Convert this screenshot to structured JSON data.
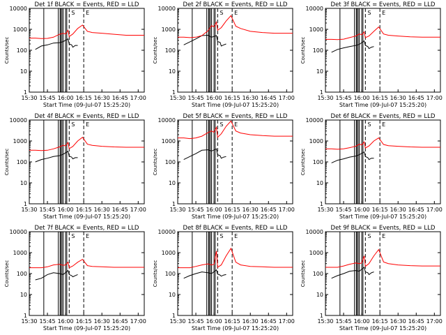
{
  "figure": {
    "xtick_labels": [
      "15:30",
      "15:45",
      "16:00",
      "16:15",
      "16:30",
      "16:45",
      "17:00"
    ],
    "xlabel": "Start Time (09-Jul-07 15:25:20)",
    "ylabel": "Counts/sec",
    "ytick_labels": [
      "1",
      "10",
      "100",
      "1000",
      "10000"
    ],
    "colors": {
      "events": "#000000",
      "lld": "#ff0000",
      "axes": "#000000",
      "background": "#ffffff"
    }
  },
  "chart_data": [
    {
      "type": "line",
      "title": "Det 1f BLACK = Events, RED = LLD",
      "x_unit": "minutes after 15:30",
      "xlim": [
        0,
        95
      ],
      "ylim": [
        1,
        10000
      ],
      "yscale": "log",
      "markers": [
        {
          "x": 33,
          "label": "S"
        },
        {
          "x": 45,
          "label": "E"
        }
      ],
      "series": [
        {
          "name": "Events",
          "color": "#000000",
          "x": [
            0,
            5,
            10,
            15,
            20,
            25,
            28,
            32,
            33,
            35,
            36,
            38,
            40
          ],
          "values": [
            null,
            110,
            160,
            180,
            220,
            230,
            260,
            350,
            200,
            180,
            140,
            170,
            170
          ]
        },
        {
          "name": "LLD",
          "color": "#ff0000",
          "x": [
            0,
            5,
            10,
            15,
            20,
            25,
            28,
            30,
            32,
            33,
            36,
            40,
            44,
            48,
            52,
            60,
            70,
            80,
            95
          ],
          "values": [
            380,
            380,
            360,
            370,
            420,
            580,
            650,
            600,
            900,
            450,
            600,
            1100,
            1600,
            800,
            700,
            650,
            580,
            520,
            520
          ]
        }
      ]
    },
    {
      "type": "line",
      "title": "Det 2f BLACK = Events, RED = LLD",
      "x_unit": "minutes after 15:30",
      "xlim": [
        0,
        95
      ],
      "ylim": [
        1,
        10000
      ],
      "yscale": "log",
      "markers": [
        {
          "x": 33,
          "label": "S"
        },
        {
          "x": 45,
          "label": "E"
        }
      ],
      "series": [
        {
          "name": "Events",
          "color": "#000000",
          "x": [
            0,
            5,
            10,
            15,
            20,
            25,
            28,
            32,
            33,
            35,
            36,
            38,
            40
          ],
          "values": [
            null,
            180,
            250,
            350,
            500,
            520,
            420,
            500,
            260,
            240,
            160,
            180,
            200
          ]
        },
        {
          "name": "LLD",
          "color": "#ff0000",
          "x": [
            0,
            5,
            10,
            15,
            20,
            25,
            28,
            30,
            32,
            33,
            36,
            40,
            44,
            48,
            52,
            60,
            70,
            80,
            95
          ],
          "values": [
            420,
            420,
            400,
            420,
            500,
            850,
            1500,
            1300,
            2200,
            900,
            1200,
            2500,
            4500,
            1400,
            1100,
            800,
            700,
            650,
            650
          ]
        }
      ]
    },
    {
      "type": "line",
      "title": "Det 3f BLACK = Events, RED = LLD",
      "x_unit": "minutes after 15:30",
      "xlim": [
        0,
        95
      ],
      "ylim": [
        1,
        10000
      ],
      "yscale": "log",
      "markers": [
        {
          "x": 33,
          "label": "S"
        },
        {
          "x": 45,
          "label": "E"
        }
      ],
      "series": [
        {
          "name": "Events",
          "color": "#000000",
          "x": [
            0,
            5,
            10,
            15,
            20,
            25,
            28,
            32,
            33,
            35,
            36,
            38,
            40
          ],
          "values": [
            null,
            80,
            110,
            130,
            150,
            170,
            190,
            280,
            170,
            150,
            120,
            140,
            150
          ]
        },
        {
          "name": "LLD",
          "color": "#ff0000",
          "x": [
            0,
            5,
            10,
            15,
            20,
            25,
            28,
            30,
            32,
            33,
            36,
            40,
            44,
            48,
            52,
            60,
            70,
            80,
            95
          ],
          "values": [
            330,
            330,
            320,
            340,
            400,
            480,
            600,
            550,
            750,
            400,
            480,
            800,
            1300,
            600,
            520,
            480,
            440,
            420,
            420
          ]
        }
      ]
    },
    {
      "type": "line",
      "title": "Det 4f BLACK = Events, RED = LLD",
      "x_unit": "minutes after 15:30",
      "xlim": [
        0,
        95
      ],
      "ylim": [
        1,
        10000
      ],
      "yscale": "log",
      "markers": [
        {
          "x": 33,
          "label": "S"
        },
        {
          "x": 45,
          "label": "E"
        }
      ],
      "series": [
        {
          "name": "Events",
          "color": "#000000",
          "x": [
            0,
            5,
            10,
            15,
            20,
            25,
            28,
            32,
            33,
            35,
            36,
            38,
            40
          ],
          "values": [
            null,
            100,
            130,
            150,
            180,
            200,
            230,
            320,
            190,
            170,
            140,
            160,
            160
          ]
        },
        {
          "name": "LLD",
          "color": "#ff0000",
          "x": [
            0,
            5,
            10,
            15,
            20,
            25,
            28,
            30,
            32,
            33,
            36,
            40,
            44,
            48,
            52,
            60,
            70,
            80,
            95
          ],
          "values": [
            360,
            360,
            350,
            360,
            420,
            520,
            620,
            580,
            850,
            430,
            550,
            1000,
            1500,
            700,
            620,
            560,
            520,
            500,
            500
          ]
        }
      ]
    },
    {
      "type": "line",
      "title": "Det 5f BLACK = Events, RED = LLD",
      "x_unit": "minutes after 15:30",
      "xlim": [
        0,
        95
      ],
      "ylim": [
        1,
        10000
      ],
      "yscale": "log",
      "markers": [
        {
          "x": 33,
          "label": "S"
        },
        {
          "x": 45,
          "label": "E"
        }
      ],
      "series": [
        {
          "name": "Events",
          "color": "#000000",
          "x": [
            0,
            5,
            10,
            15,
            20,
            25,
            28,
            32,
            33,
            35,
            36,
            38,
            40
          ],
          "values": [
            null,
            130,
            180,
            250,
            360,
            380,
            330,
            420,
            220,
            200,
            150,
            170,
            180
          ]
        },
        {
          "name": "LLD",
          "color": "#ff0000",
          "x": [
            0,
            5,
            10,
            15,
            20,
            25,
            28,
            30,
            32,
            33,
            36,
            40,
            44,
            48,
            52,
            60,
            70,
            80,
            95
          ],
          "values": [
            1400,
            1400,
            1300,
            1400,
            1700,
            2500,
            3000,
            2600,
            4500,
            1500,
            2200,
            5000,
            9000,
            3000,
            2400,
            2000,
            1800,
            1700,
            1700
          ]
        }
      ]
    },
    {
      "type": "line",
      "title": "Det 6f BLACK = Events, RED = LLD",
      "x_unit": "minutes after 15:30",
      "xlim": [
        0,
        95
      ],
      "ylim": [
        1,
        10000
      ],
      "yscale": "log",
      "markers": [
        {
          "x": 33,
          "label": "S"
        },
        {
          "x": 45,
          "label": "E"
        }
      ],
      "series": [
        {
          "name": "Events",
          "color": "#000000",
          "x": [
            0,
            5,
            10,
            15,
            20,
            25,
            28,
            32,
            33,
            35,
            36,
            38,
            40
          ],
          "values": [
            null,
            90,
            120,
            140,
            170,
            190,
            220,
            300,
            180,
            160,
            130,
            150,
            150
          ]
        },
        {
          "name": "LLD",
          "color": "#ff0000",
          "x": [
            0,
            5,
            10,
            15,
            20,
            25,
            28,
            30,
            32,
            33,
            36,
            40,
            44,
            48,
            52,
            60,
            70,
            80,
            95
          ],
          "values": [
            420,
            420,
            400,
            420,
            480,
            560,
            700,
            650,
            900,
            460,
            580,
            1000,
            1400,
            680,
            600,
            560,
            520,
            500,
            500
          ]
        }
      ]
    },
    {
      "type": "line",
      "title": "Det 7f BLACK = Events, RED = LLD",
      "x_unit": "minutes after 15:30",
      "xlim": [
        0,
        95
      ],
      "ylim": [
        1,
        10000
      ],
      "yscale": "log",
      "markers": [
        {
          "x": 33,
          "label": "S"
        },
        {
          "x": 45,
          "label": "E"
        }
      ],
      "series": [
        {
          "name": "Events",
          "color": "#000000",
          "x": [
            0,
            5,
            10,
            15,
            20,
            25,
            28,
            32,
            33,
            35,
            36,
            38,
            40
          ],
          "values": [
            null,
            50,
            60,
            90,
            110,
            100,
            90,
            140,
            90,
            80,
            70,
            80,
            90
          ]
        },
        {
          "name": "LLD",
          "color": "#ff0000",
          "x": [
            0,
            5,
            10,
            15,
            20,
            25,
            28,
            30,
            32,
            33,
            36,
            40,
            44,
            48,
            52,
            60,
            70,
            80,
            95
          ],
          "values": [
            190,
            190,
            190,
            210,
            260,
            280,
            250,
            260,
            350,
            190,
            230,
            350,
            480,
            240,
            220,
            210,
            200,
            200,
            200
          ]
        }
      ]
    },
    {
      "type": "line",
      "title": "Det 8f BLACK = Events, RED = LLD",
      "x_unit": "minutes after 15:30",
      "xlim": [
        0,
        95
      ],
      "ylim": [
        1,
        10000
      ],
      "yscale": "log",
      "markers": [
        {
          "x": 33,
          "label": "S"
        },
        {
          "x": 45,
          "label": "E"
        }
      ],
      "series": [
        {
          "name": "Events",
          "color": "#000000",
          "x": [
            0,
            5,
            10,
            15,
            20,
            25,
            28,
            32,
            33,
            35,
            36,
            38,
            40
          ],
          "values": [
            null,
            60,
            80,
            100,
            120,
            110,
            100,
            150,
            95,
            85,
            75,
            85,
            90
          ]
        },
        {
          "name": "LLD",
          "color": "#ff0000",
          "x": [
            0,
            5,
            10,
            15,
            20,
            25,
            28,
            30,
            32,
            33,
            36,
            40,
            44,
            48,
            52,
            60,
            70,
            80,
            95
          ],
          "values": [
            190,
            190,
            190,
            220,
            260,
            290,
            260,
            280,
            1200,
            200,
            260,
            700,
            1600,
            350,
            260,
            220,
            210,
            200,
            200
          ]
        }
      ]
    },
    {
      "type": "line",
      "title": "Det 9f BLACK = Events, RED = LLD",
      "x_unit": "minutes after 15:30",
      "xlim": [
        0,
        95
      ],
      "ylim": [
        1,
        10000
      ],
      "yscale": "log",
      "markers": [
        {
          "x": 33,
          "label": "S"
        },
        {
          "x": 45,
          "label": "E"
        }
      ],
      "series": [
        {
          "name": "Events",
          "color": "#000000",
          "x": [
            0,
            5,
            10,
            15,
            20,
            25,
            28,
            32,
            33,
            35,
            36,
            38,
            40
          ],
          "values": [
            null,
            60,
            80,
            100,
            130,
            140,
            130,
            200,
            120,
            110,
            90,
            110,
            120
          ]
        },
        {
          "name": "LLD",
          "color": "#ff0000",
          "x": [
            0,
            5,
            10,
            15,
            20,
            25,
            28,
            30,
            32,
            33,
            36,
            40,
            44,
            48,
            52,
            60,
            70,
            80,
            95
          ],
          "values": [
            200,
            200,
            200,
            230,
            280,
            320,
            300,
            320,
            700,
            220,
            300,
            700,
            1400,
            360,
            300,
            260,
            240,
            230,
            230
          ]
        }
      ]
    }
  ]
}
